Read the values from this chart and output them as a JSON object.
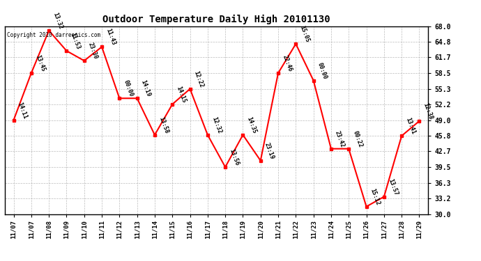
{
  "title": "Outdoor Temperature Daily High 20101130",
  "copyright": "Copyright 2010 darreonics.com",
  "background_color": "#ffffff",
  "line_color": "#ff0000",
  "marker_color": "#ff0000",
  "grid_color": "#aaaaaa",
  "text_color": "#000000",
  "ylim": [
    30.0,
    68.0
  ],
  "yticks": [
    30.0,
    33.2,
    36.3,
    39.5,
    42.7,
    45.8,
    49.0,
    52.2,
    55.3,
    58.5,
    61.7,
    64.8,
    68.0
  ],
  "xlabels": [
    "11/07",
    "11/07",
    "11/08",
    "11/09",
    "11/10",
    "11/11",
    "11/12",
    "11/13",
    "11/14",
    "11/15",
    "11/16",
    "11/17",
    "11/18",
    "11/19",
    "11/20",
    "11/21",
    "11/22",
    "11/23",
    "11/24",
    "11/25",
    "11/26",
    "11/27",
    "11/28",
    "11/29"
  ],
  "values": [
    49.0,
    58.5,
    67.1,
    63.0,
    61.0,
    63.8,
    53.4,
    53.4,
    46.0,
    52.2,
    55.3,
    46.0,
    39.5,
    46.0,
    40.8,
    58.5,
    64.4,
    57.0,
    43.2,
    43.2,
    31.5,
    33.5,
    45.8,
    48.8
  ],
  "annotations": [
    "14:11",
    "13:45",
    "13:32",
    "11:53",
    "23:30",
    "11:43",
    "00:00",
    "14:19",
    "13:58",
    "14:15",
    "12:22",
    "12:32",
    "13:56",
    "14:35",
    "23:19",
    "22:46",
    "15:05",
    "00:00",
    "23:42",
    "00:22",
    "15:12",
    "13:57",
    "13:41",
    "12:38"
  ],
  "figwidth": 6.9,
  "figheight": 3.75,
  "dpi": 100
}
